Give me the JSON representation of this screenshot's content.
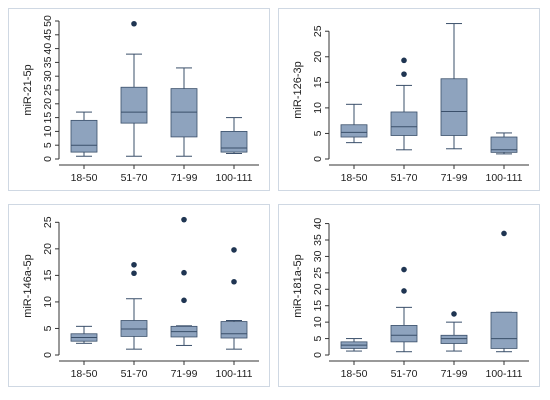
{
  "colors": {
    "box_fill": "#8ea3be",
    "box_stroke": "#3a4f6a",
    "outlier": "#1f3552",
    "axis": "#333333",
    "panel_border": "#cfd8e3"
  },
  "chart_data": [
    {
      "type": "box",
      "ylabel": "miR-21-5p",
      "ylim": [
        0,
        50
      ],
      "yticks": [
        0,
        5,
        10,
        15,
        20,
        25,
        30,
        35,
        40,
        45,
        50
      ],
      "categories": [
        "18-50",
        "51-70",
        "71-99",
        "100-111"
      ],
      "boxes": [
        {
          "min": 1,
          "q1": 2.5,
          "median": 5,
          "q3": 14,
          "max": 17
        },
        {
          "min": 1,
          "q1": 13,
          "median": 17,
          "q3": 26,
          "max": 38
        },
        {
          "min": 1,
          "q1": 8,
          "median": 17,
          "q3": 25.5,
          "max": 33
        },
        {
          "min": 2,
          "q1": 2.5,
          "median": 4,
          "q3": 10,
          "max": 15
        }
      ],
      "outliers": [
        [],
        [
          49
        ],
        [],
        []
      ]
    },
    {
      "type": "box",
      "ylabel": "miR-126-3p",
      "ylim": [
        0,
        27
      ],
      "yticks": [
        0,
        5,
        10,
        15,
        20,
        25
      ],
      "categories": [
        "18-50",
        "51-70",
        "71-99",
        "100-111"
      ],
      "boxes": [
        {
          "min": 3.2,
          "q1": 4.3,
          "median": 5.2,
          "q3": 6.7,
          "max": 10.7
        },
        {
          "min": 1.8,
          "q1": 4.6,
          "median": 6.3,
          "q3": 9.2,
          "max": 14.4
        },
        {
          "min": 2.0,
          "q1": 4.6,
          "median": 9.3,
          "q3": 15.7,
          "max": 26.5
        },
        {
          "min": 1.0,
          "q1": 1.3,
          "median": 1.8,
          "q3": 4.3,
          "max": 5.1
        }
      ],
      "outliers": [
        [],
        [
          16.6,
          19.3
        ],
        [],
        []
      ]
    },
    {
      "type": "box",
      "ylabel": "miR-146a-5p",
      "ylim": [
        0,
        26
      ],
      "yticks": [
        0,
        5,
        10,
        15,
        20,
        25
      ],
      "categories": [
        "18-50",
        "51-70",
        "71-99",
        "100-111"
      ],
      "boxes": [
        {
          "min": 2.2,
          "q1": 2.6,
          "median": 3.3,
          "q3": 4.0,
          "max": 5.4
        },
        {
          "min": 1.1,
          "q1": 3.5,
          "median": 4.9,
          "q3": 6.5,
          "max": 10.6
        },
        {
          "min": 1.8,
          "q1": 3.4,
          "median": 4.4,
          "q3": 5.4,
          "max": 5.5
        },
        {
          "min": 1.1,
          "q1": 3.2,
          "median": 4.0,
          "q3": 6.3,
          "max": 6.5
        }
      ],
      "outliers": [
        [],
        [
          15.4,
          17.0
        ],
        [
          10.3,
          15.5,
          25.5
        ],
        [
          13.8,
          19.8
        ]
      ]
    },
    {
      "type": "box",
      "ylabel": "miR-181a-5p",
      "ylim": [
        0,
        42
      ],
      "yticks": [
        0,
        5,
        10,
        15,
        20,
        25,
        30,
        35,
        40
      ],
      "categories": [
        "18-50",
        "51-70",
        "71-99",
        "100-111"
      ],
      "boxes": [
        {
          "min": 1.2,
          "q1": 2.0,
          "median": 3.0,
          "q3": 4.0,
          "max": 5.0
        },
        {
          "min": 1.0,
          "q1": 4.0,
          "median": 6.0,
          "q3": 9.0,
          "max": 14.5
        },
        {
          "min": 1.2,
          "q1": 3.5,
          "median": 5.0,
          "q3": 6.0,
          "max": 10.0
        },
        {
          "min": 1.0,
          "q1": 2.0,
          "median": 5.0,
          "q3": 13.0,
          "max": 13.0
        }
      ],
      "outliers": [
        [],
        [
          19.5,
          26.0
        ],
        [
          12.5
        ],
        [
          37.0
        ]
      ]
    }
  ]
}
